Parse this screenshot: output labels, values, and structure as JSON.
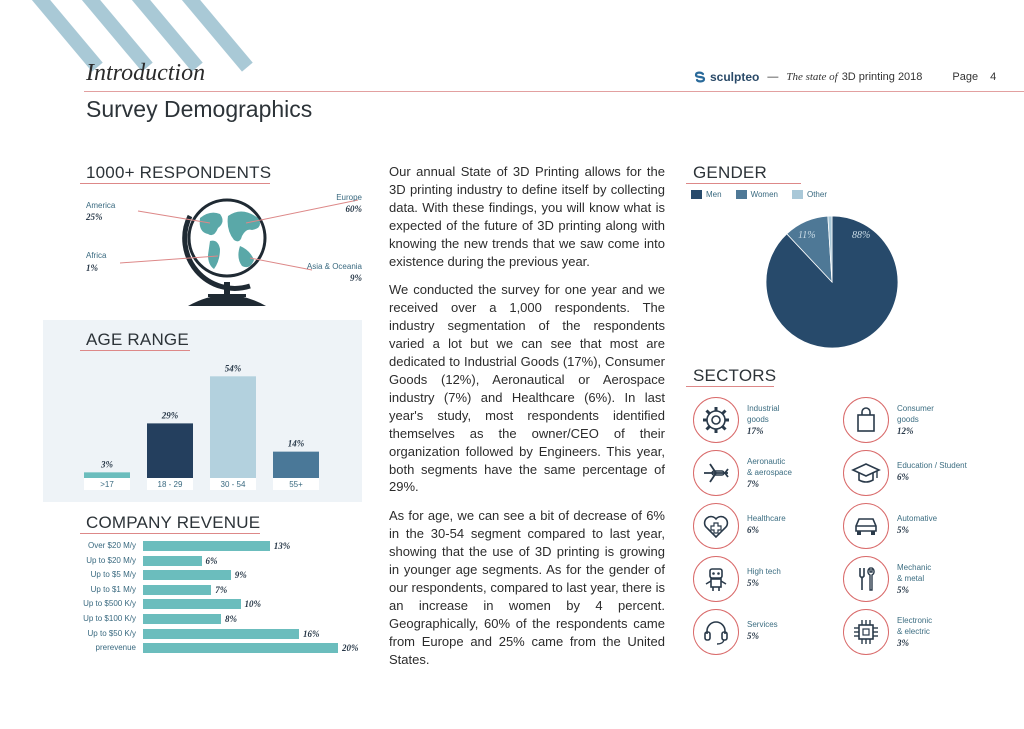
{
  "header": {
    "chapter": "Introduction",
    "page_title": "Survey Demographics",
    "brand_logo": "sculpteo",
    "brand_dash": "—",
    "brand_italic": "The state of",
    "brand_tail": "3D printing 2018",
    "page_label": "Page",
    "page_number": "4"
  },
  "respondents": {
    "title": "1000+ RESPONDENTS",
    "regions": [
      {
        "name": "America",
        "value": "25%"
      },
      {
        "name": "Africa",
        "value": "1%"
      },
      {
        "name": "Europe",
        "value": "60%"
      },
      {
        "name": "Asia & Oceania",
        "value": "9%"
      }
    ]
  },
  "body": {
    "p1": "Our annual State of 3D Printing allows for the 3D printing industry to define itself by collecting data. With these findings, you will know what is expected of the future of 3D printing along with knowing the new trends that we saw come into existence during the previous year.",
    "p2": "We conducted the survey for one year and we received over a 1,000 respondents. The industry segmentation of the respondents varied a lot but we can see that most are dedicated to Industrial Goods (17%), Consumer Goods (12%), Aeronautical or Aerospace industry (7%) and Healthcare (6%). In last year's study, most respondents identified themselves as the owner/CEO of their organization followed by Engineers. This year, both segments have the same percentage of 29%.",
    "p3": "As for age, we can see a bit of decrease of 6% in the 30-54 segment compared to last year, showing that the use of 3D printing is growing in younger age segments. As for the gender of our respondents, compared to last year, there is an increase in women by 4 percent. Geographically, 60% of the respondents came from Europe and 25% came from the United States."
  },
  "gender_legend": {
    "title": "GENDER",
    "men": "Men",
    "women": "Women",
    "other": "Other"
  },
  "sectors": {
    "title": "SECTORS",
    "items": [
      {
        "line1": "Industrial",
        "line2": "goods",
        "value": "17%"
      },
      {
        "line1": "Consumer",
        "line2": "goods",
        "value": "12%"
      },
      {
        "line1": "Aeronautic",
        "line2": "& aerospace",
        "value": "7%"
      },
      {
        "line1": "Education / Student",
        "line2": "",
        "value": "6%"
      },
      {
        "line1": "Healthcare",
        "line2": "",
        "value": "6%"
      },
      {
        "line1": "Automative",
        "line2": "",
        "value": "5%"
      },
      {
        "line1": "High tech",
        "line2": "",
        "value": "5%"
      },
      {
        "line1": "Mechanic",
        "line2": "& metal",
        "value": "5%"
      },
      {
        "line1": "Services",
        "line2": "",
        "value": "5%"
      },
      {
        "line1": "Electronic",
        "line2": "& electric",
        "value": "3%"
      }
    ]
  },
  "colors": {
    "navy": "#274a6b",
    "steel": "#4e7896",
    "light": "#a9c8d8",
    "teal": "#6bbdbd",
    "accent": "#d96a6a",
    "globe": "#5aa8a8"
  },
  "chart_data": [
    {
      "type": "bar",
      "title": "AGE RANGE",
      "categories": [
        ">17",
        "18 - 29",
        "30 - 54",
        "55+"
      ],
      "values": [
        3,
        29,
        54,
        14
      ],
      "labels": [
        "3%",
        "29%",
        "54%",
        "14%"
      ],
      "colors": [
        "#6bbdbd",
        "#243f5e",
        "#b3d1de",
        "#4a7898"
      ],
      "ylim": [
        0,
        60
      ]
    },
    {
      "type": "bar",
      "orientation": "horizontal",
      "title": "COMPANY REVENUE",
      "categories": [
        "Over $20 M/y",
        "Up to $20 M/y",
        "Up to $5 M/y",
        "Up to $1 M/y",
        "Up to $500 K/y",
        "Up to $100 K/y",
        "Up to $50 K/y",
        "prerevenue"
      ],
      "values": [
        13,
        6,
        9,
        7,
        10,
        8,
        16,
        20
      ],
      "labels": [
        "13%",
        "6%",
        "9%",
        "7%",
        "10%",
        "8%",
        "16%",
        "20%"
      ],
      "xlim": [
        0,
        20
      ]
    },
    {
      "type": "pie",
      "title": "GENDER",
      "categories": [
        "Men",
        "Women",
        "Other"
      ],
      "values": [
        88,
        11,
        1
      ],
      "labels": [
        "88%",
        "11%",
        ""
      ]
    }
  ]
}
